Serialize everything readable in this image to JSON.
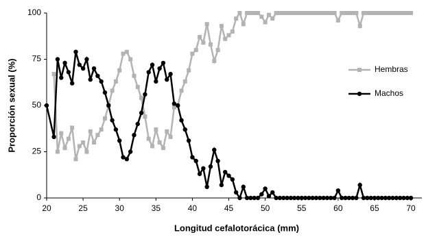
{
  "chart_data": {
    "type": "line",
    "xlabel": "Longitud cefalotorácica (mm)",
    "ylabel": "Proporción sexual (%)",
    "x": [
      20,
      21,
      21.5,
      22,
      22.5,
      23,
      23.5,
      24,
      24.5,
      25,
      25.5,
      26,
      26.5,
      27,
      27.5,
      28,
      28.5,
      29,
      29.5,
      30,
      30.5,
      31,
      31.5,
      32,
      32.5,
      33,
      33.5,
      34,
      34.5,
      35,
      35.5,
      36,
      36.5,
      37,
      37.5,
      38,
      38.5,
      39,
      39.5,
      40,
      40.5,
      41,
      41.5,
      42,
      42.5,
      43,
      43.5,
      44,
      44.5,
      45,
      45.5,
      46,
      46.5,
      47,
      47.5,
      48,
      48.5,
      49,
      49.5,
      50,
      50.5,
      51,
      51.5,
      52,
      52.5,
      53,
      53.5,
      54,
      54.5,
      55,
      55.5,
      56,
      56.5,
      57,
      57.5,
      58,
      58.5,
      59,
      59.5,
      60,
      60.5,
      61,
      61.5,
      62,
      62.5,
      63,
      63.5,
      64,
      64.5,
      65,
      65.5,
      66,
      66.5,
      67,
      67.5,
      68,
      68.5,
      69,
      69.5,
      70
    ],
    "series": [
      {
        "name": "Hembras",
        "color": "#b3b3b3",
        "marker": "square",
        "values": [
          null,
          67,
          25,
          35,
          27,
          32,
          38,
          21,
          28,
          30,
          25,
          36,
          30,
          34,
          37,
          43,
          50,
          58,
          63,
          69,
          78,
          79,
          75,
          66,
          60,
          54,
          44,
          32,
          28,
          37,
          30,
          27,
          36,
          33,
          49,
          50,
          58,
          63,
          69,
          78,
          80,
          87,
          84,
          94,
          83,
          74,
          80,
          93,
          86,
          88,
          90,
          97,
          100,
          94,
          100,
          100,
          100,
          100,
          98,
          95,
          99,
          97,
          100,
          100,
          100,
          100,
          100,
          100,
          100,
          100,
          100,
          100,
          100,
          100,
          100,
          100,
          100,
          100,
          100,
          96,
          100,
          100,
          100,
          100,
          100,
          93,
          100,
          100,
          100,
          100,
          100,
          100,
          100,
          100,
          100,
          100,
          100,
          100,
          100,
          100
        ]
      },
      {
        "name": "Machos",
        "color": "#000000",
        "marker": "circle",
        "values": [
          50,
          33,
          75,
          65,
          73,
          68,
          62,
          79,
          72,
          70,
          75,
          64,
          70,
          66,
          63,
          57,
          50,
          42,
          37,
          31,
          22,
          21,
          25,
          34,
          40,
          46,
          56,
          68,
          72,
          63,
          70,
          73,
          64,
          67,
          51,
          50,
          42,
          37,
          31,
          22,
          20,
          13,
          16,
          6,
          17,
          26,
          20,
          7,
          14,
          12,
          10,
          3,
          0,
          6,
          0,
          0,
          0,
          0,
          2,
          5,
          1,
          3,
          0,
          0,
          0,
          0,
          0,
          0,
          0,
          0,
          0,
          0,
          0,
          0,
          0,
          0,
          0,
          0,
          0,
          4,
          0,
          0,
          0,
          0,
          0,
          7,
          0,
          0,
          0,
          0,
          0,
          0,
          0,
          0,
          0,
          0,
          0,
          0,
          0,
          0
        ]
      }
    ],
    "xlim": [
      20,
      71.5
    ],
    "xticks": [
      20,
      25,
      30,
      35,
      40,
      45,
      50,
      55,
      60,
      65,
      70
    ],
    "ylim": [
      0,
      100
    ],
    "yticks": [
      0,
      25,
      50,
      75,
      100
    ],
    "legend": "right",
    "grid": false
  }
}
